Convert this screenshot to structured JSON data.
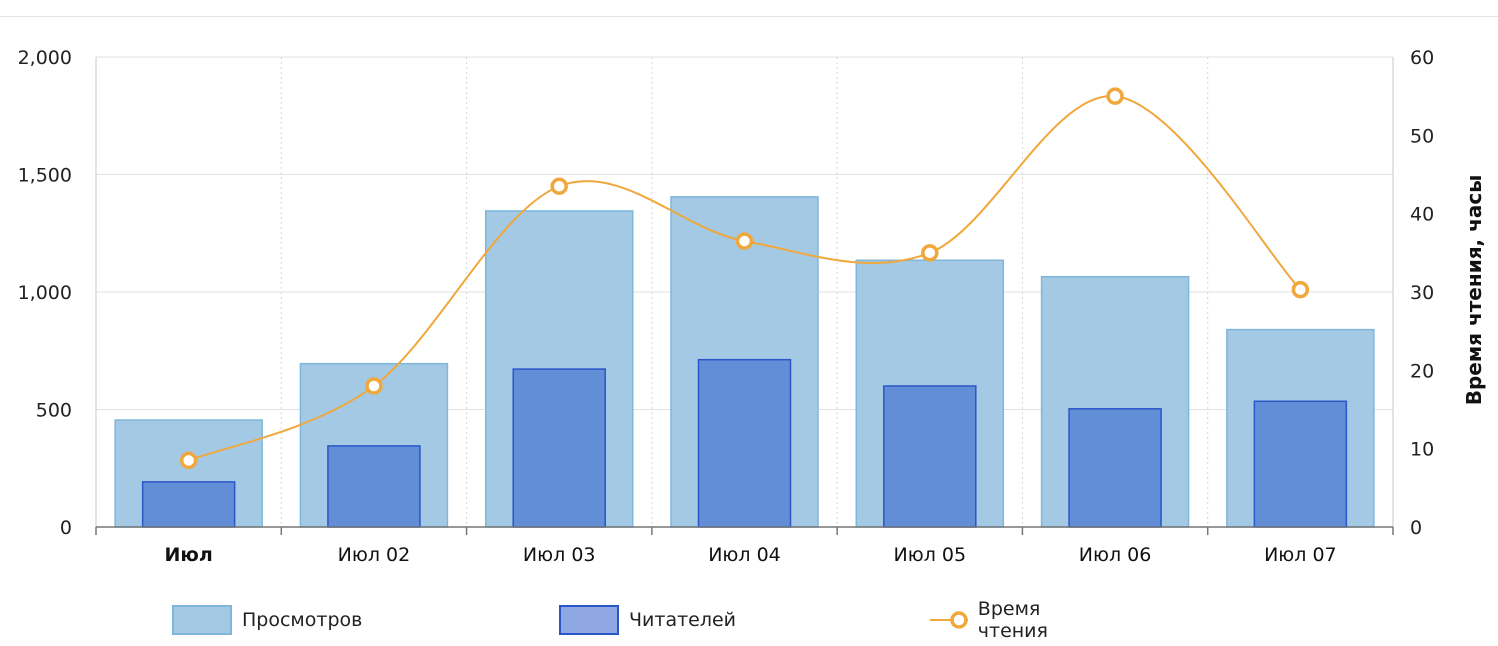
{
  "chart_data": {
    "type": "bar",
    "categories": [
      "Июл",
      "Июл 02",
      "Июл 03",
      "Июл 04",
      "Июл 05",
      "Июл 06",
      "Июл 07"
    ],
    "series": [
      {
        "name": "Просмотров",
        "kind": "bar",
        "axis": "left",
        "color": "#a3c9e4",
        "border": "#7fb6da",
        "values": [
          455,
          695,
          1345,
          1405,
          1135,
          1065,
          840
        ]
      },
      {
        "name": "Читателей",
        "kind": "bar",
        "axis": "left",
        "color": "#628ed8",
        "border": "#2a56c8",
        "values": [
          192,
          345,
          672,
          712,
          600,
          503,
          535
        ]
      },
      {
        "name": "Время чтения",
        "kind": "line",
        "axis": "right",
        "color": "#f0a83c",
        "values": [
          8.5,
          18,
          43.5,
          36.5,
          35,
          55,
          30.3
        ]
      }
    ],
    "ylim": [
      0,
      2000
    ],
    "yticks": [
      "0",
      "500",
      "1,000",
      "1,500",
      "2,000"
    ],
    "y2lim": [
      0,
      60
    ],
    "y2ticks": [
      "0",
      "10",
      "20",
      "30",
      "40",
      "50",
      "60"
    ],
    "y2label": "Время чтения, часы",
    "xlabel": "",
    "ylabel": "",
    "grid": true,
    "legend_position": "bottom"
  }
}
